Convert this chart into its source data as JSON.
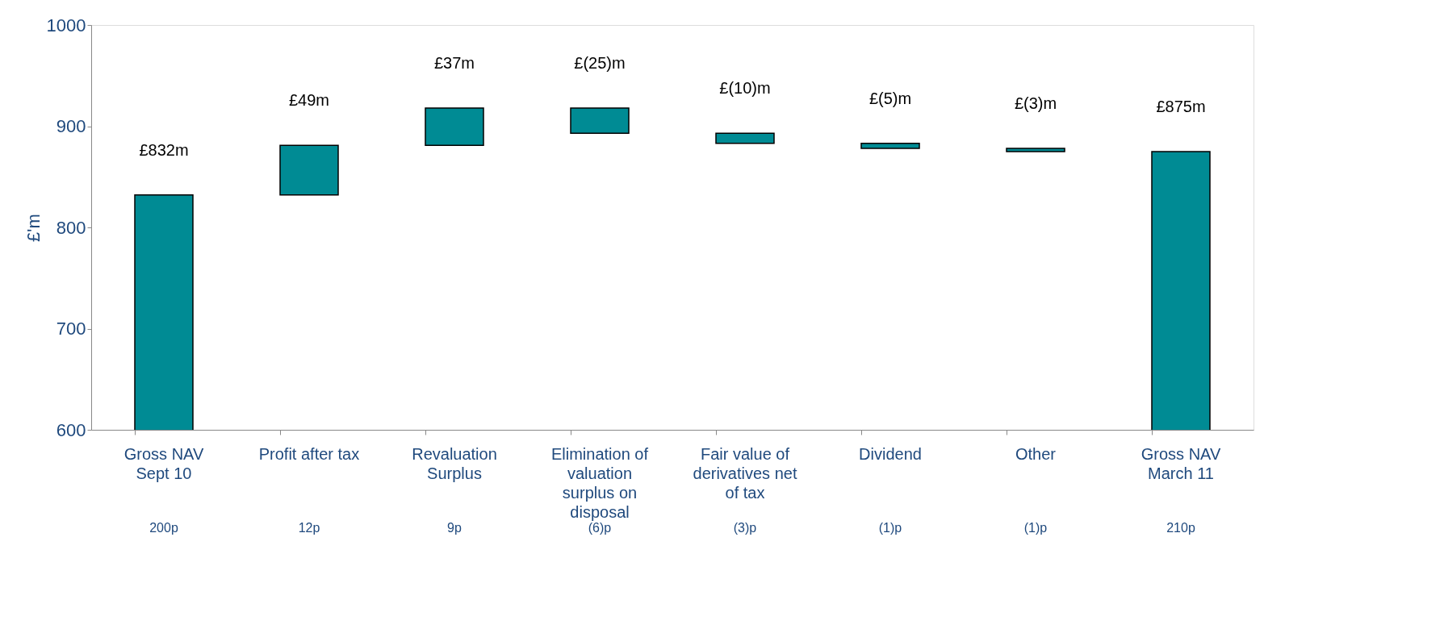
{
  "chart_data": {
    "type": "bar",
    "ylabel": "£'m",
    "categories": [
      "Gross NAV\nSept 10",
      "Profit after tax",
      "Revaluation\nSurplus",
      "Elimination of\nvaluation\nsurplus on\ndisposal",
      "Fair value of\nderivatives net\nof tax",
      "Dividend",
      "Other",
      "Gross NAV\nMarch 11"
    ],
    "values": [
      832,
      49,
      37,
      -25,
      -10,
      -5,
      -3,
      875
    ],
    "base": [
      0,
      832,
      881,
      918,
      893,
      883,
      878,
      0
    ],
    "value_labels": [
      "£832m",
      "£49m",
      "£37m",
      "£(25)m",
      "£(10)m",
      "£(5)m",
      "£(3)m",
      "£875m"
    ],
    "color": "#008b94",
    "ylim": [
      600,
      1000
    ],
    "yticks": [
      600,
      700,
      800,
      900,
      1000
    ],
    "grid": false,
    "annotations": [
      "200p",
      "12p",
      "9p",
      "(6)p",
      "(3)p",
      "(1)p",
      "(1)p",
      "210p"
    ]
  }
}
